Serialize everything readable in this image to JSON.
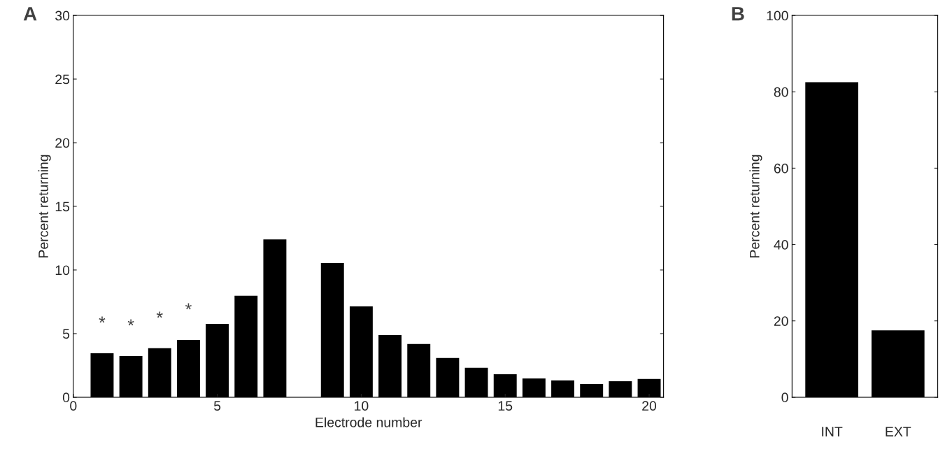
{
  "chart_data": [
    {
      "type": "bar",
      "title": "A",
      "xlabel": "Electrode number",
      "ylabel": "Percent returning",
      "color": "#000000",
      "x": [
        1,
        2,
        3,
        4,
        5,
        6,
        7,
        8,
        9,
        10,
        11,
        12,
        13,
        14,
        15,
        16,
        17,
        18,
        19,
        20
      ],
      "values": [
        3.46,
        3.24,
        3.85,
        4.5,
        5.77,
        7.97,
        12.4,
        null,
        10.55,
        7.14,
        4.89,
        4.18,
        3.08,
        2.31,
        1.81,
        1.48,
        1.32,
        1.04,
        1.26,
        1.43
      ],
      "xlim": [
        0,
        20.5
      ],
      "xticks": [
        0,
        5,
        10,
        15,
        20
      ],
      "ylim": [
        0,
        30
      ],
      "yticks": [
        0,
        5,
        10,
        15,
        20,
        25,
        30
      ],
      "grid": false,
      "legend": false,
      "annotations": [
        "*",
        "*",
        "*",
        "*"
      ]
    },
    {
      "type": "bar",
      "title": "B",
      "ylabel": "Percent returning",
      "color": "#000000",
      "categories": [
        "INT",
        "EXT"
      ],
      "values": [
        82.5,
        17.5
      ],
      "ylim": [
        0,
        100
      ],
      "yticks": [
        0,
        20,
        40,
        60,
        80,
        100
      ],
      "grid": false,
      "legend": false
    }
  ]
}
